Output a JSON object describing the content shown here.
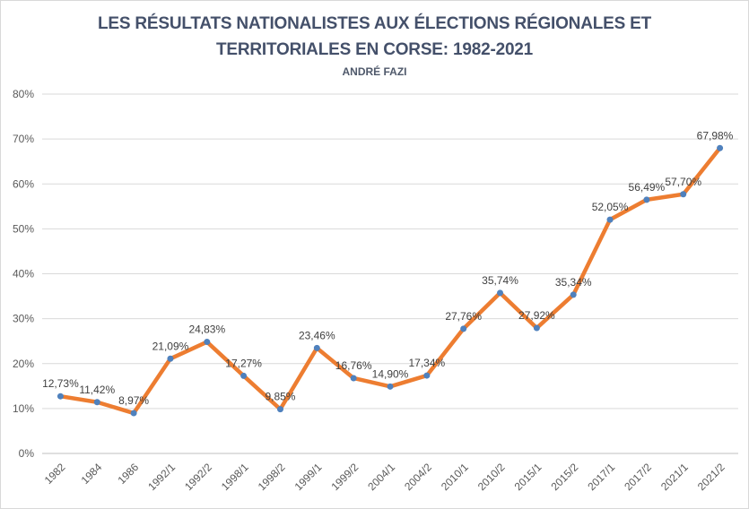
{
  "chart_data": {
    "type": "line",
    "title": "LES RÉSULTATS NATIONALISTES AUX ÉLECTIONS RÉGIONALES ET TERRITORIALES EN CORSE: 1982-2021",
    "title_line1": "LES RÉSULTATS NATIONALISTES AUX ÉLECTIONS RÉGIONALES ET",
    "title_line2": "TERRITORIALES EN CORSE: 1982-2021",
    "subtitle": "ANDRÉ FAZI",
    "categories": [
      "1982",
      "1984",
      "1986",
      "1992/1",
      "1992/2",
      "1998/1",
      "1998/2",
      "1999/1",
      "1999/2",
      "2004/1",
      "2004/2",
      "2010/1",
      "2010/2",
      "2015/1",
      "2015/2",
      "2017/1",
      "2017/2",
      "2021/1",
      "2021/2"
    ],
    "values": [
      12.73,
      11.42,
      8.97,
      21.09,
      24.83,
      17.27,
      9.85,
      23.46,
      16.76,
      14.9,
      17.34,
      27.76,
      35.74,
      27.92,
      35.34,
      52.05,
      56.49,
      57.7,
      67.98
    ],
    "point_labels": [
      "12,73%",
      "11,42%",
      "8,97%",
      "21,09%",
      "24,83%",
      "17,27%",
      "9,85%",
      "23,46%",
      "16,76%",
      "14,90%",
      "17,34%",
      "27,76%",
      "35,74%",
      "27,92%",
      "35,34%",
      "52,05%",
      "56,49%",
      "57,70%",
      "67,98%"
    ],
    "y_ticks": [
      "0%",
      "10%",
      "20%",
      "30%",
      "40%",
      "50%",
      "60%",
      "70%",
      "80%"
    ],
    "ylim": [
      0,
      80
    ],
    "y_tick_step": 10,
    "grid": true,
    "legend_position": "none",
    "xlabel": "",
    "ylabel": "",
    "colors": {
      "line": "#ED7D31",
      "marker": "#4F81BD",
      "data_label": "#404040",
      "axis_label": "#595959",
      "gridline": "#D9D9D9",
      "axis_line": "#BFBFBF",
      "title": "#44506A"
    }
  }
}
